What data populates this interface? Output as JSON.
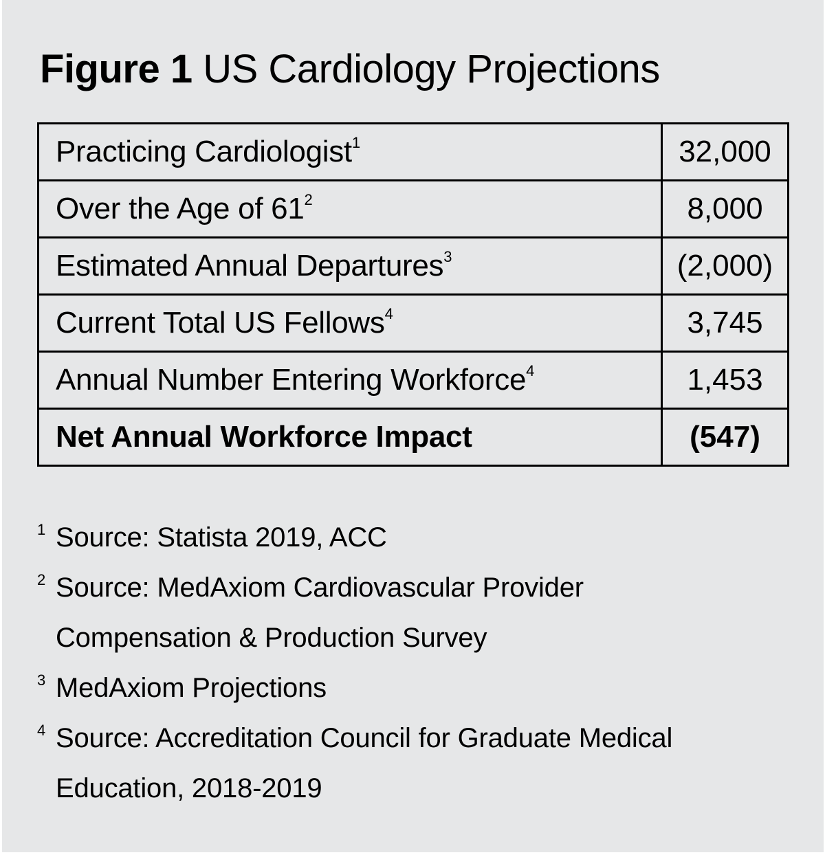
{
  "figure": {
    "label": "Figure 1",
    "title": "US Cardiology Projections"
  },
  "table": {
    "rows": [
      {
        "label": "Practicing Cardiologist",
        "ref": "1",
        "value": "32,000",
        "bold": false
      },
      {
        "label": "Over the Age of 61",
        "ref": "2",
        "value": "8,000",
        "bold": false
      },
      {
        "label": "Estimated Annual Departures",
        "ref": "3",
        "value": "(2,000)",
        "bold": false
      },
      {
        "label": "Current Total US Fellows",
        "ref": "4",
        "value": "3,745",
        "bold": false
      },
      {
        "label": "Annual Number Entering Workforce",
        "ref": "4",
        "value": "1,453",
        "bold": false
      },
      {
        "label": "Net Annual Workforce Impact",
        "ref": "",
        "value": "(547)",
        "bold": true
      }
    ]
  },
  "footnotes": [
    {
      "mark": "1",
      "lines": [
        "Source: Statista 2019, ACC"
      ]
    },
    {
      "mark": "2",
      "lines": [
        "Source: MedAxiom Cardiovascular Provider",
        "Compensation & Production Survey"
      ]
    },
    {
      "mark": "3",
      "lines": [
        "MedAxiom Projections"
      ]
    },
    {
      "mark": "4",
      "lines": [
        "Source: Accreditation Council for Graduate Medical",
        "Education, 2018-2019"
      ]
    }
  ]
}
